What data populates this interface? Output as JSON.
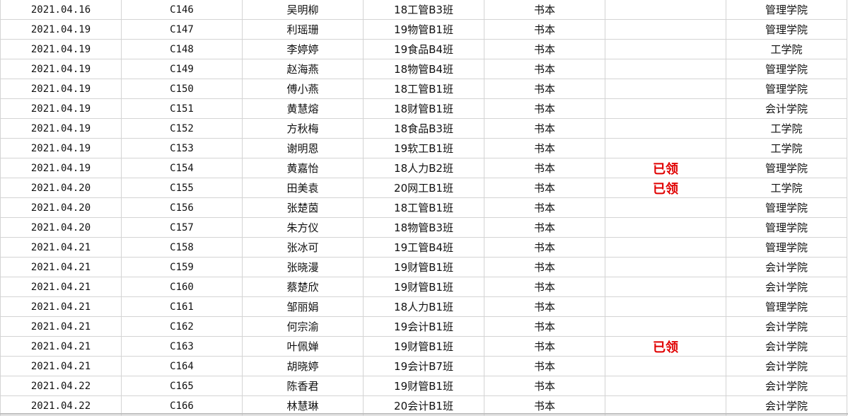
{
  "rows": [
    {
      "date": "2021.04.16",
      "code": "C146",
      "name": "吴明柳",
      "class": "18工管B3班",
      "item": "书本",
      "status": "",
      "college": "管理学院"
    },
    {
      "date": "2021.04.19",
      "code": "C147",
      "name": "利瑶珊",
      "class": "19物管B1班",
      "item": "书本",
      "status": "",
      "college": "管理学院"
    },
    {
      "date": "2021.04.19",
      "code": "C148",
      "name": "李婷婷",
      "class": "19食品B4班",
      "item": "书本",
      "status": "",
      "college": "工学院"
    },
    {
      "date": "2021.04.19",
      "code": "C149",
      "name": "赵海燕",
      "class": "18物管B4班",
      "item": "书本",
      "status": "",
      "college": "管理学院"
    },
    {
      "date": "2021.04.19",
      "code": "C150",
      "name": "傅小燕",
      "class": "18工管B1班",
      "item": "书本",
      "status": "",
      "college": "管理学院"
    },
    {
      "date": "2021.04.19",
      "code": "C151",
      "name": "黄慧熔",
      "class": "18财管B1班",
      "item": "书本",
      "status": "",
      "college": "会计学院"
    },
    {
      "date": "2021.04.19",
      "code": "C152",
      "name": "方秋梅",
      "class": "18食品B3班",
      "item": "书本",
      "status": "",
      "college": "工学院"
    },
    {
      "date": "2021.04.19",
      "code": "C153",
      "name": "谢明恩",
      "class": "19软工B1班",
      "item": "书本",
      "status": "",
      "college": "工学院"
    },
    {
      "date": "2021.04.19",
      "code": "C154",
      "name": "黄嘉怡",
      "class": "18人力B2班",
      "item": "书本",
      "status": "已领",
      "college": "管理学院"
    },
    {
      "date": "2021.04.20",
      "code": "C155",
      "name": "田美袁",
      "class": "20网工B1班",
      "item": "书本",
      "status": "已领",
      "college": "工学院"
    },
    {
      "date": "2021.04.20",
      "code": "C156",
      "name": "张楚茵",
      "class": "18工管B1班",
      "item": "书本",
      "status": "",
      "college": "管理学院"
    },
    {
      "date": "2021.04.20",
      "code": "C157",
      "name": "朱方仪",
      "class": "18物管B3班",
      "item": "书本",
      "status": "",
      "college": "管理学院"
    },
    {
      "date": "2021.04.21",
      "code": "C158",
      "name": "张冰可",
      "class": "19工管B4班",
      "item": "书本",
      "status": "",
      "college": "管理学院"
    },
    {
      "date": "2021.04.21",
      "code": "C159",
      "name": "张晓漫",
      "class": "19财管B1班",
      "item": "书本",
      "status": "",
      "college": "会计学院"
    },
    {
      "date": "2021.04.21",
      "code": "C160",
      "name": "蔡楚欣",
      "class": "19财管B1班",
      "item": "书本",
      "status": "",
      "college": "会计学院"
    },
    {
      "date": "2021.04.21",
      "code": "C161",
      "name": "邹丽娟",
      "class": "18人力B1班",
      "item": "书本",
      "status": "",
      "college": "管理学院"
    },
    {
      "date": "2021.04.21",
      "code": "C162",
      "name": "何宗渝",
      "class": "19会计B1班",
      "item": "书本",
      "status": "",
      "college": "会计学院"
    },
    {
      "date": "2021.04.21",
      "code": "C163",
      "name": "叶佩婵",
      "class": "19财管B1班",
      "item": "书本",
      "status": "已领",
      "college": "会计学院"
    },
    {
      "date": "2021.04.21",
      "code": "C164",
      "name": "胡晓婷",
      "class": "19会计B7班",
      "item": "书本",
      "status": "",
      "college": "会计学院"
    },
    {
      "date": "2021.04.22",
      "code": "C165",
      "name": "陈香君",
      "class": "19财管B1班",
      "item": "书本",
      "status": "",
      "college": "会计学院"
    },
    {
      "date": "2021.04.22",
      "code": "C166",
      "name": "林慧琳",
      "class": "20会计B1班",
      "item": "书本",
      "status": "",
      "college": "会计学院"
    }
  ],
  "colors": {
    "status_text": "#e00000",
    "grid": "#d4d4d4"
  }
}
